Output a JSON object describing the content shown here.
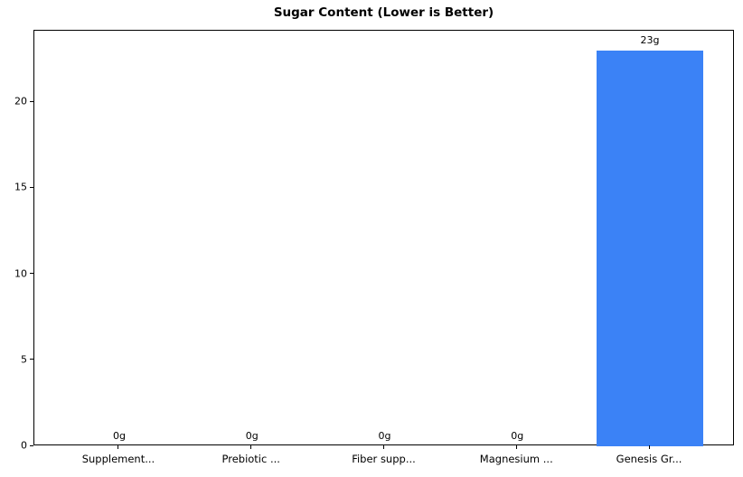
{
  "chart_data": {
    "type": "bar",
    "title": "Sugar Content (Lower is Better)",
    "categories": [
      "Supplement...",
      "Prebiotic ...",
      "Fiber supp...",
      "Magnesium ...",
      "Genesis Gr..."
    ],
    "values": [
      0,
      0,
      0,
      0,
      23
    ],
    "value_labels": [
      "0g",
      "0g",
      "0g",
      "0g",
      "23g"
    ],
    "xlabel": "",
    "ylabel": "",
    "yticks": [
      0,
      5,
      10,
      15,
      20
    ],
    "ylim": [
      0,
      24.15
    ],
    "grid": false,
    "legend": "none",
    "bar_color": "#3b82f6",
    "axis_color": "#000000",
    "text_color": "#000000",
    "background_color": "#ffffff"
  }
}
